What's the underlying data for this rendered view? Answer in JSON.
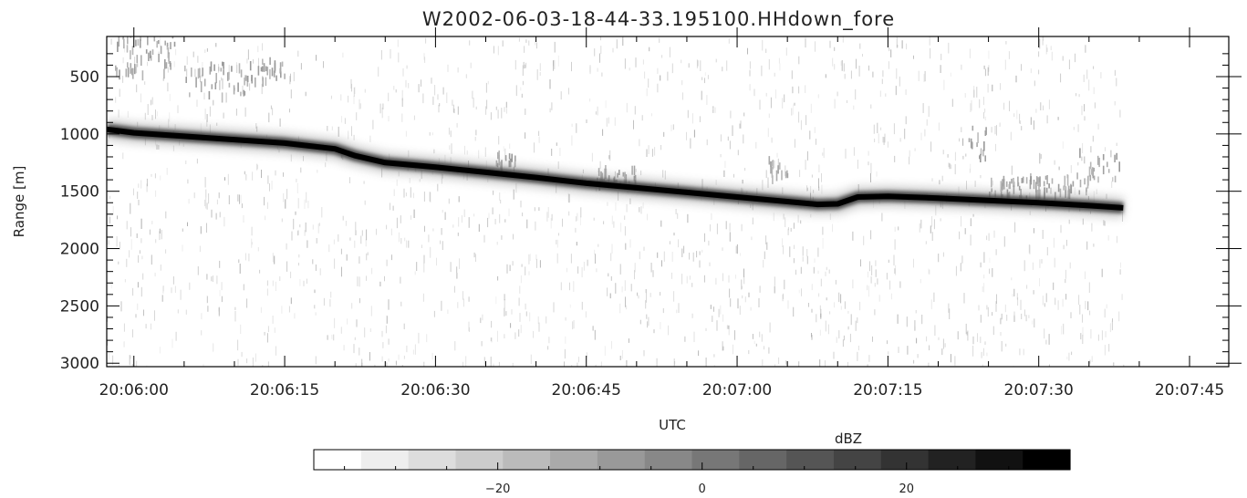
{
  "chart_data": {
    "type": "heatmap",
    "title": "W2002-06-03-18-44-33.195100.HHdown_fore",
    "xlabel": "UTC",
    "ylabel": "Range [m]",
    "x_ticks": [
      "20:06:00",
      "20:06:15",
      "20:06:30",
      "20:06:45",
      "20:07:00",
      "20:07:15",
      "20:07:30",
      "20:07:45"
    ],
    "x_tick_seconds": [
      0,
      15,
      30,
      45,
      60,
      75,
      90,
      105
    ],
    "xlim_seconds": [
      -2.7,
      108.9
    ],
    "data_end_seconds": 98.4,
    "y_ticks": [
      500,
      1000,
      1500,
      2000,
      2500,
      3000
    ],
    "ylim": [
      3030,
      150
    ],
    "y_inverted": true,
    "surface_range": {
      "time_seconds": [
        -2.7,
        0,
        5,
        10,
        15,
        20,
        22,
        25,
        30,
        35,
        40,
        45,
        50,
        55,
        60,
        65,
        68,
        70,
        72,
        75,
        80,
        85,
        90,
        95,
        98.4
      ],
      "range_m": [
        960,
        990,
        1020,
        1050,
        1080,
        1130,
        1190,
        1250,
        1290,
        1335,
        1380,
        1430,
        1470,
        1510,
        1550,
        1590,
        1615,
        1610,
        1550,
        1545,
        1560,
        1580,
        1600,
        1625,
        1645
      ]
    },
    "colorbar": {
      "label": "dBZ",
      "ticks": [
        -20,
        0,
        20
      ],
      "range": [
        -38,
        36
      ],
      "levels": 16,
      "colormap": "white-to-black"
    }
  }
}
